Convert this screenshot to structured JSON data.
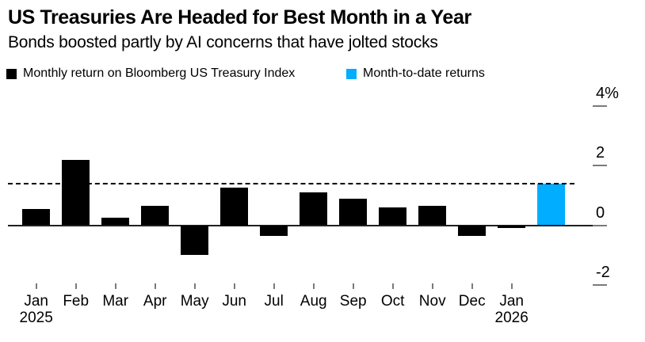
{
  "header": {
    "title": "US Treasuries Are Headed for Best Month in a Year",
    "subtitle": "Bonds boosted partly by AI concerns that have jolted stocks"
  },
  "legend": {
    "items": [
      {
        "label": "Monthly return on Bloomberg US Treasury Index",
        "color": "#000000"
      },
      {
        "label": "Month-to-date returns",
        "color": "#00adff"
      }
    ]
  },
  "chart_data": {
    "type": "bar",
    "title": "US Treasuries Are Headed for Best Month in a Year",
    "subtitle": "Bonds boosted partly by AI concerns that have jolted stocks",
    "categories": [
      "Jan",
      "Feb",
      "Mar",
      "Apr",
      "May",
      "Jun",
      "Jul",
      "Aug",
      "Sep",
      "Oct",
      "Nov",
      "Dec",
      "Jan",
      ""
    ],
    "year_labels": {
      "0": "2025",
      "12": "2026"
    },
    "series": [
      {
        "name": "Monthly return on Bloomberg US Treasury Index",
        "color": "#000000",
        "values": [
          0.55,
          2.2,
          0.25,
          0.65,
          -1.0,
          1.25,
          -0.35,
          1.1,
          0.9,
          0.6,
          0.65,
          -0.35,
          -0.1,
          null
        ]
      },
      {
        "name": "Month-to-date returns",
        "color": "#00adff",
        "values": [
          null,
          null,
          null,
          null,
          null,
          null,
          null,
          null,
          null,
          null,
          null,
          null,
          null,
          1.4
        ]
      }
    ],
    "reference_line": {
      "value": 1.4,
      "style": "dashed",
      "color": "#000000"
    },
    "y_axis": {
      "position": "right",
      "unit": "%",
      "ticks": [
        {
          "value": 4,
          "label": "4%"
        },
        {
          "value": 2,
          "label": "2"
        },
        {
          "value": 0,
          "label": "0"
        },
        {
          "value": -2,
          "label": "-2"
        }
      ],
      "range": [
        -2.9,
        4.6
      ]
    },
    "grid": false,
    "legend_position": "top"
  }
}
